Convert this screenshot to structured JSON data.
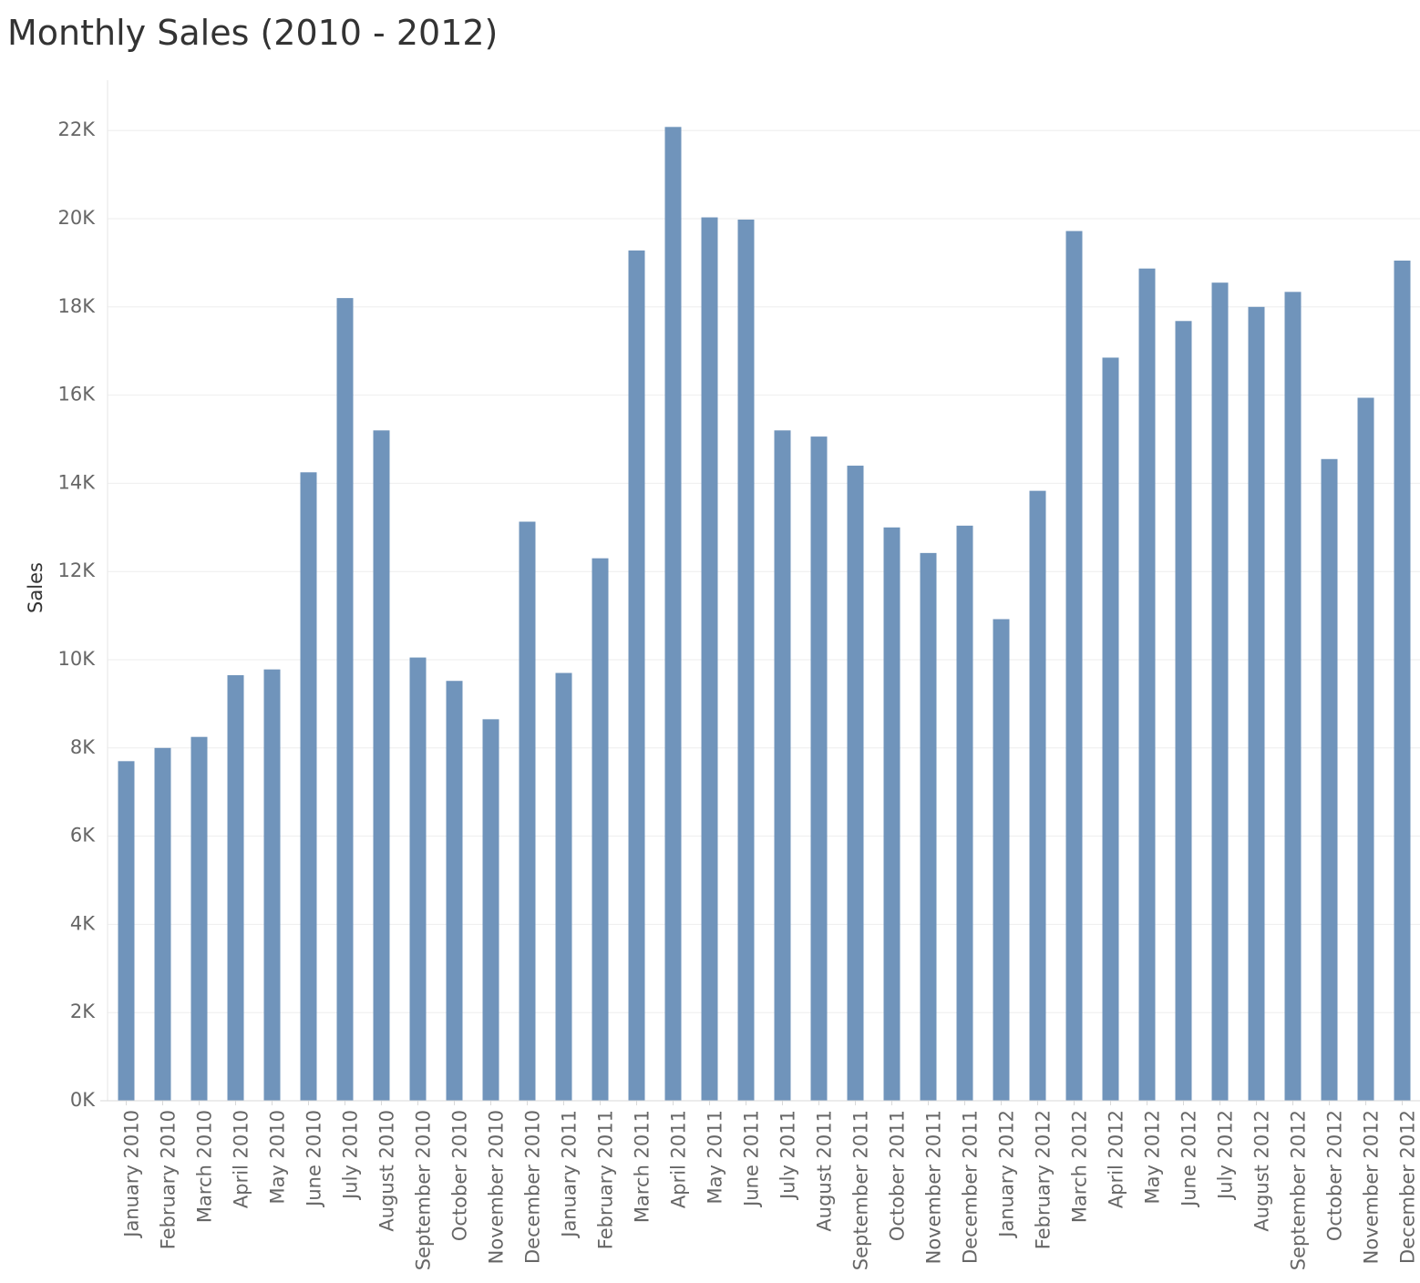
{
  "chart_data": {
    "type": "bar",
    "title": "Monthly Sales (2010 - 2012)",
    "xlabel": "",
    "ylabel": "Sales",
    "ylim": [
      0,
      23000
    ],
    "yticks": [
      0,
      2000,
      4000,
      6000,
      8000,
      10000,
      12000,
      14000,
      16000,
      18000,
      20000,
      22000
    ],
    "ytick_labels": [
      "0K",
      "2K",
      "4K",
      "6K",
      "8K",
      "10K",
      "12K",
      "14K",
      "16K",
      "18K",
      "20K",
      "22K"
    ],
    "grid": true,
    "bar_color": "#7094bb",
    "categories": [
      "January 2010",
      "February 2010",
      "March 2010",
      "April 2010",
      "May 2010",
      "June 2010",
      "July 2010",
      "August 2010",
      "September 2010",
      "October 2010",
      "November 2010",
      "December 2010",
      "January 2011",
      "February 2011",
      "March 2011",
      "April 2011",
      "May 2011",
      "June 2011",
      "July 2011",
      "August 2011",
      "September 2011",
      "October 2011",
      "November 2011",
      "December 2011",
      "January 2012",
      "February 2012",
      "March 2012",
      "April 2012",
      "May 2012",
      "June 2012",
      "July 2012",
      "August 2012",
      "September 2012",
      "October 2012",
      "November 2012",
      "December 2012"
    ],
    "values": [
      7700,
      8000,
      8250,
      9650,
      9780,
      14250,
      18200,
      15200,
      10050,
      9520,
      8650,
      13130,
      9700,
      12300,
      19280,
      22080,
      20030,
      19980,
      15200,
      15060,
      14400,
      13000,
      12420,
      13040,
      10920,
      13830,
      19720,
      16850,
      18870,
      17680,
      18550,
      18000,
      18340,
      14550,
      15940,
      19050
    ]
  }
}
